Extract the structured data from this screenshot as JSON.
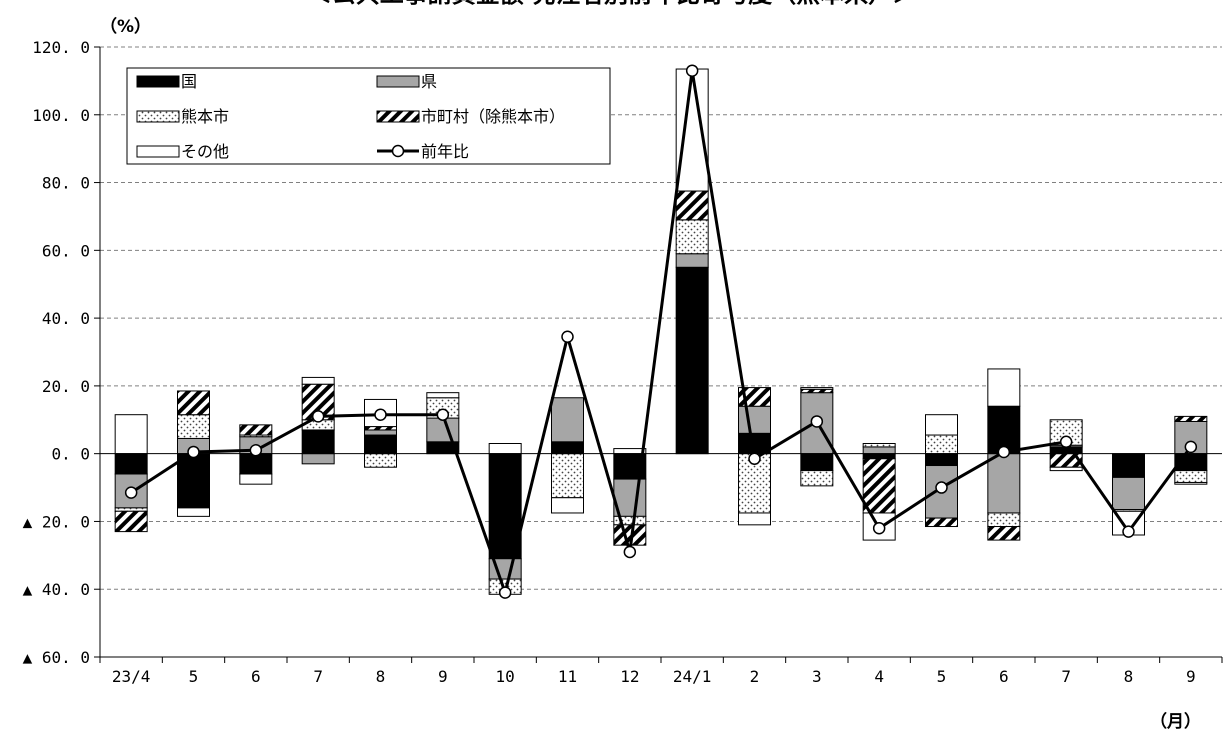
{
  "chart_data": {
    "type": "bar",
    "title": "＜公共工事請負金額 発注者別前年比寄与度（熊本県）＞",
    "y_unit_label": "（%）",
    "x_unit_label": "（月）",
    "categories": [
      "23/4",
      "5",
      "6",
      "7",
      "8",
      "9",
      "10",
      "11",
      "12",
      "24/1",
      "2",
      "3",
      "4",
      "5",
      "6",
      "7",
      "8",
      "9"
    ],
    "ylim": [
      -60,
      120
    ],
    "yticks": [
      {
        "value": 120,
        "label": "120. 0"
      },
      {
        "value": 100,
        "label": "100. 0"
      },
      {
        "value": 80,
        "label": "80. 0"
      },
      {
        "value": 60,
        "label": "60. 0"
      },
      {
        "value": 40,
        "label": "40. 0"
      },
      {
        "value": 20,
        "label": "20. 0"
      },
      {
        "value": 0,
        "label": "0. 0"
      },
      {
        "value": -20,
        "label": "▲ 20. 0"
      },
      {
        "value": -40,
        "label": "▲ 40. 0"
      },
      {
        "value": -60,
        "label": "▲ 60. 0"
      }
    ],
    "grid": "horizontal dashed",
    "legend_position": "top-left",
    "series": [
      {
        "name": "国",
        "kind": "bar",
        "pattern": "solid-black",
        "values": [
          -6,
          -16,
          -6,
          7,
          5.5,
          3.5,
          -31,
          3.5,
          -7.5,
          55,
          6,
          -5,
          -1.5,
          -3.5,
          14,
          2,
          -7,
          -5
        ]
      },
      {
        "name": "県",
        "kind": "bar",
        "pattern": "gray",
        "values": [
          -10,
          4.5,
          5,
          -3,
          1.5,
          7,
          -6,
          13,
          -11,
          4,
          8,
          18,
          2,
          -15.5,
          -17.5,
          0.5,
          -9.5,
          9.5
        ]
      },
      {
        "name": "熊本市",
        "kind": "bar",
        "pattern": "dots",
        "values": [
          -1,
          7,
          0.5,
          3,
          -4,
          6,
          -4.5,
          -13,
          -2.5,
          10,
          -17.5,
          -4.5,
          1,
          5.5,
          -4,
          7.5,
          -0.5,
          -3.5
        ]
      },
      {
        "name": "市町村（除熊本市）",
        "kind": "bar",
        "pattern": "hatch",
        "values": [
          -6,
          7,
          3,
          10.5,
          1,
          0,
          0,
          0,
          -6,
          8.5,
          5.5,
          1,
          -16,
          -2.5,
          -4,
          -4,
          0,
          1.5
        ]
      },
      {
        "name": "その他",
        "kind": "bar",
        "pattern": "white",
        "values": [
          11.5,
          -2.5,
          -3,
          2,
          8,
          1.5,
          3,
          -4.5,
          1.5,
          36,
          -3.5,
          0.5,
          -8,
          6,
          11,
          -1,
          -7,
          -0.5
        ]
      },
      {
        "name": "前年比",
        "kind": "line",
        "values": [
          -11.5,
          0.5,
          1,
          11,
          11.5,
          11.5,
          -41,
          34.5,
          -29,
          113,
          -1.5,
          9.5,
          -22,
          -10,
          0.5,
          3.5,
          -23,
          2
        ]
      }
    ],
    "colors": {
      "black": "#000000",
      "gray": "#a6a6a6",
      "white": "#ffffff",
      "grid": "#808080"
    }
  }
}
